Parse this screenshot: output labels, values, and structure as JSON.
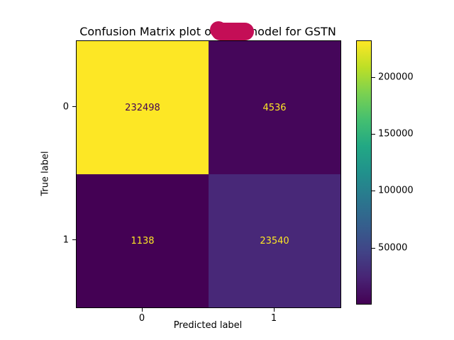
{
  "title": {
    "prefix": "Confusion Matrix plot of",
    "suffix": "model for GSTN",
    "redaction_color": "#c40e56"
  },
  "chart_data": {
    "type": "heatmap",
    "subtype": "confusion-matrix",
    "title_prefix": "Confusion Matrix plot of",
    "title_suffix": "model for GSTN",
    "title_redacted": true,
    "xlabel": "Predicted label",
    "ylabel": "True label",
    "x_tick_labels": [
      "0",
      "1"
    ],
    "y_tick_labels": [
      "0",
      "1"
    ],
    "matrix": [
      [
        232498,
        4536
      ],
      [
        1138,
        23540
      ]
    ],
    "cells": [
      {
        "row": 0,
        "col": 0,
        "value": "232498",
        "bg": "#fde725",
        "fg": "#440154"
      },
      {
        "row": 0,
        "col": 1,
        "value": "4536",
        "bg": "#45065a",
        "fg": "#fde725"
      },
      {
        "row": 1,
        "col": 0,
        "value": "1138",
        "bg": "#440154",
        "fg": "#fde725"
      },
      {
        "row": 1,
        "col": 1,
        "value": "23540",
        "bg": "#482878",
        "fg": "#fde725"
      }
    ],
    "colormap": "viridis",
    "colorbar": {
      "vmin": 1138,
      "vmax": 232498,
      "ticks": [
        50000,
        100000,
        150000,
        200000
      ],
      "tick_labels": [
        "50000",
        "100000",
        "150000",
        "200000"
      ],
      "gradient_stops": [
        "#440154",
        "#482475",
        "#414487",
        "#355f8d",
        "#2a788e",
        "#21918c",
        "#22a884",
        "#44bf70",
        "#7ad151",
        "#bddf26",
        "#fde725"
      ]
    },
    "legend_position": "right",
    "grid": false,
    "background": "#ffffff"
  }
}
